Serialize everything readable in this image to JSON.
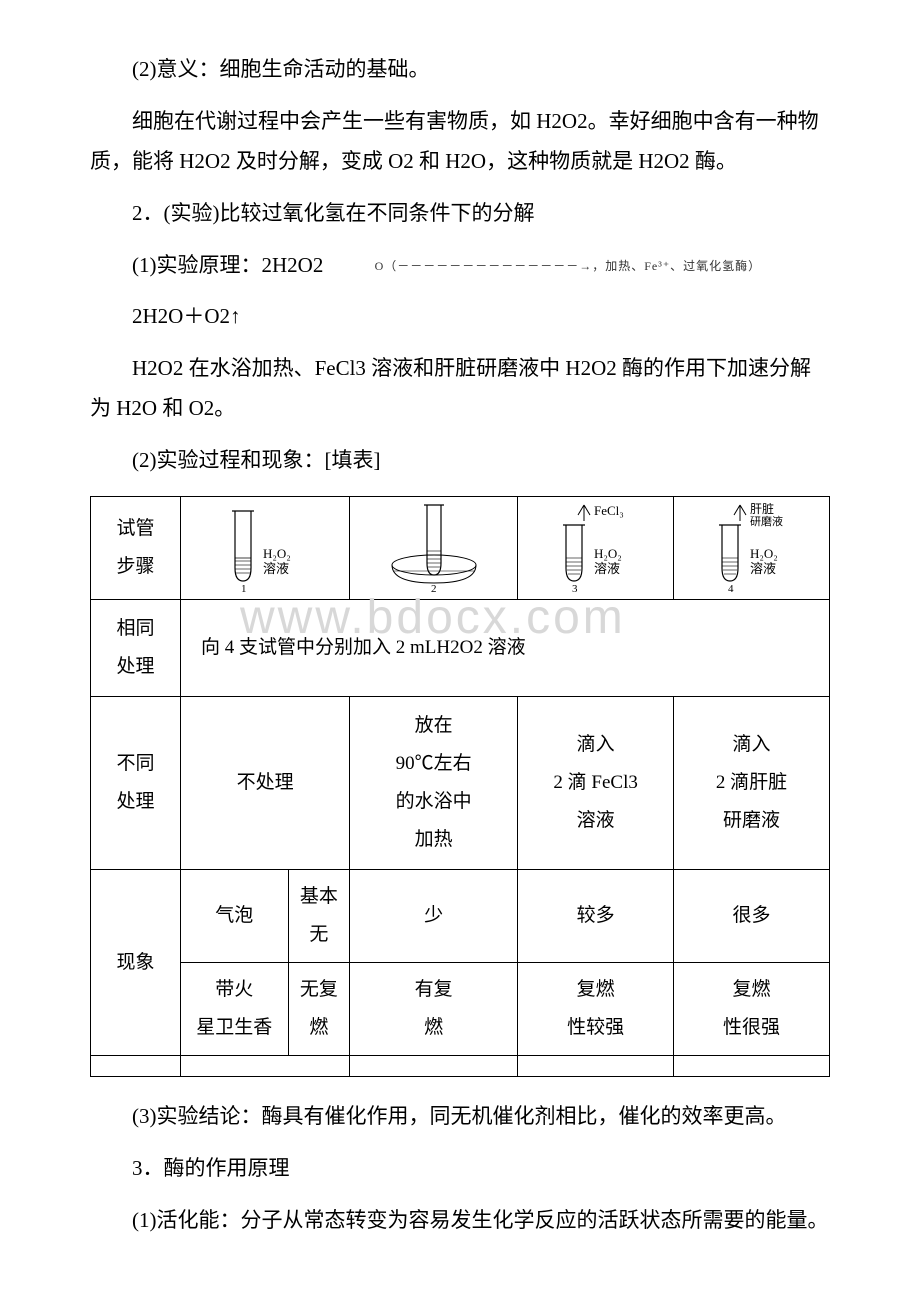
{
  "paragraphs": {
    "p1": "(2)意义：细胞生命活动的基础。",
    "p2": "细胞在代谢过程中会产生一些有害物质，如 H2O2。幸好细胞中含有一种物质，能将 H2O2 及时分解，变成 O2 和 H2O，这种物质就是 H2O2 酶。",
    "p3": "2．(实验)比较过氧化氢在不同条件下的分解",
    "p4_prefix": "(1)实验原理：2H2O2 ",
    "p4_eq_suffix": "→，加热、Fe³⁺、过氧化氢酶）",
    "p4_eq_prefix": "O（－－－－－－－－－－－－－－",
    "p5": "2H2O＋O2↑",
    "p6": "H2O2 在水浴加热、FeCl3 溶液和肝脏研磨液中 H2O2 酶的作用下加速分解为 H2O 和 O2。",
    "p7": "(2)实验过程和现象：[填表]",
    "p8": "(3)实验结论：酶具有催化作用，同无机催化剂相比，催化的效率更高。",
    "p9": "3．酶的作用原理",
    "p10": "(1)活化能：分子从常态转变为容易发生化学反应的活跃状态所需要的能量。"
  },
  "table": {
    "header_labels": {
      "tube": "试管",
      "step": "步骤"
    },
    "tube_labels": {
      "h2o2": "H₂O₂",
      "solution": "溶液",
      "fecl3": "FeCl₃",
      "liver": "肝脏",
      "grind": "研磨液"
    },
    "row1_label": "相同\n处理",
    "row1_content": "向 4 支试管中分别加入 2 mLH2O2 溶液",
    "row2_label": "不同\n处理",
    "row2": {
      "c1": "不处理",
      "c2": "放在\n90℃左右\n的水浴中\n加热",
      "c3": "滴入\n2 滴 FeCl3\n溶液",
      "c4": "滴入\n2 滴肝脏\n研磨液"
    },
    "row3_label": "现象",
    "row3a": {
      "label": "气泡",
      "c1": "基本\n无",
      "c2": "少",
      "c3": "较多",
      "c4": "很多"
    },
    "row3b": {
      "label": "带火\n星卫生香",
      "c1": "无复\n燃",
      "c2": "有复\n燃",
      "c3": "复燃\n性较强",
      "c4": "复燃\n性很强"
    }
  },
  "watermark": "www.bdocx.com",
  "colors": {
    "background": "#ffffff",
    "text": "#000000",
    "watermark": "#d8d8d8",
    "tube_outline": "#000000",
    "liquid_fill": "#888888"
  }
}
